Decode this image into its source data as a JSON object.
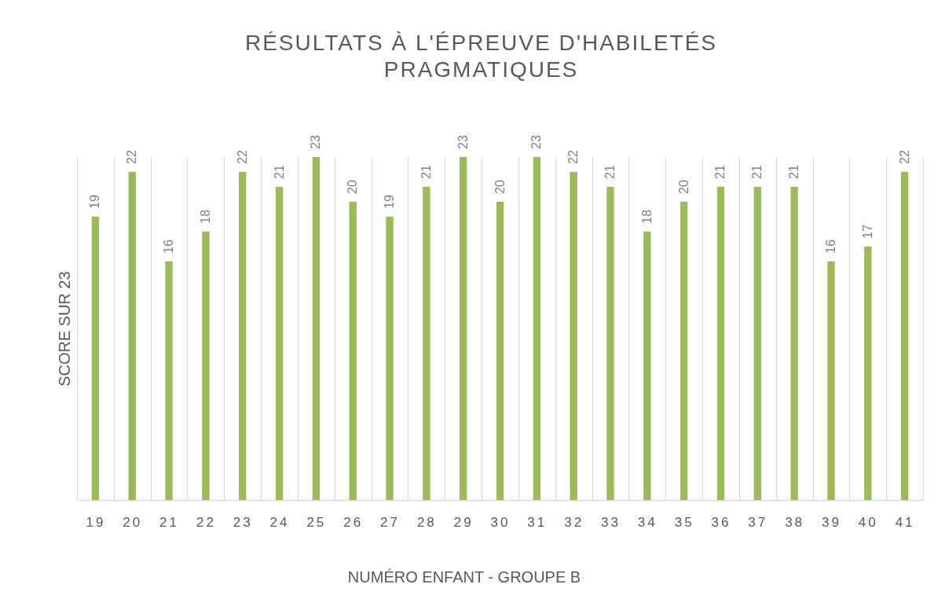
{
  "chart_data": {
    "type": "bar",
    "title": "RÉSULTATS À L'ÉPREUVE D'HABILETÉS\nPRAGMATIQUES",
    "xlabel": "NUMÉRO ENFANT - GROUPE B",
    "ylabel": "SCORE SUR 23",
    "categories": [
      "19",
      "20",
      "21",
      "22",
      "23",
      "24",
      "25",
      "26",
      "27",
      "28",
      "29",
      "30",
      "31",
      "32",
      "33",
      "34",
      "35",
      "36",
      "37",
      "38",
      "39",
      "40",
      "41"
    ],
    "values": [
      19,
      22,
      16,
      18,
      22,
      21,
      23,
      20,
      19,
      21,
      23,
      20,
      23,
      22,
      21,
      18,
      20,
      21,
      21,
      21,
      16,
      17,
      22
    ],
    "color": "#9bbb59",
    "ylim": [
      0,
      23
    ],
    "grid": "x",
    "data_labels": true,
    "tick_labels": "x"
  }
}
